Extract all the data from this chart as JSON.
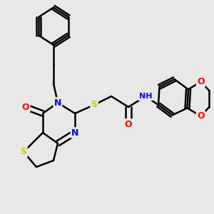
{
  "background_color": "#e8e8e8",
  "bond_color": "#000000",
  "bond_lw": 1.8,
  "atom_colors": {
    "N": "#0000ee",
    "O": "#ff0000",
    "S": "#cccc00",
    "C": "#000000"
  },
  "font_size": 9,
  "font_size_small": 8
}
